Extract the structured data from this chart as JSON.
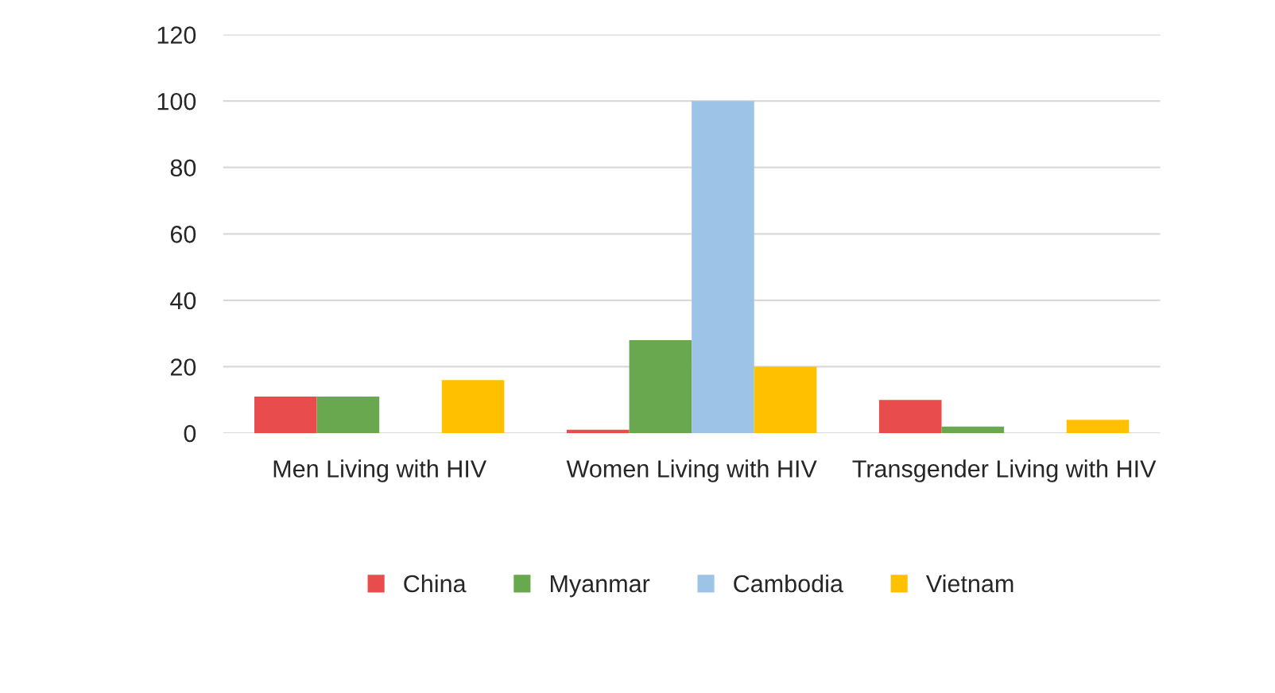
{
  "chart_data": {
    "type": "bar",
    "categories": [
      "Men Living with HIV",
      "Women Living with HIV",
      "Transgender Living with HIV"
    ],
    "series": [
      {
        "name": "China",
        "color": "#e84c4c",
        "values": [
          11,
          1,
          10
        ]
      },
      {
        "name": "Myanmar",
        "color": "#6aa84f",
        "values": [
          11,
          28,
          2
        ]
      },
      {
        "name": "Cambodia",
        "color": "#9dc3e6",
        "values": [
          null,
          100,
          null
        ]
      },
      {
        "name": "Vietnam",
        "color": "#ffc000",
        "values": [
          16,
          20,
          4
        ]
      }
    ],
    "ylim": [
      0,
      120
    ],
    "yticks": [
      0,
      20,
      40,
      60,
      80,
      100,
      120
    ],
    "grid": "y",
    "legend": "bottom"
  }
}
